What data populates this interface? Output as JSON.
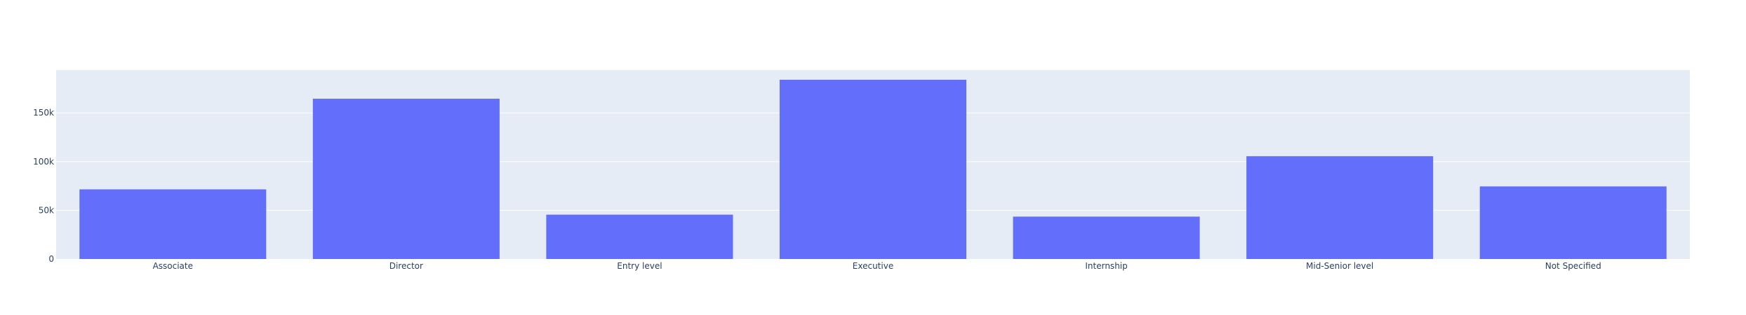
{
  "chart_data": {
    "type": "bar",
    "categories": [
      "Associate",
      "Director",
      "Entry level",
      "Executive",
      "Internship",
      "Mid-Senior level",
      "Not Specified"
    ],
    "values": [
      71500,
      164500,
      45500,
      184000,
      43500,
      105500,
      74500
    ],
    "title": "",
    "xlabel": "",
    "ylabel": "",
    "ylim": [
      0,
      194000
    ],
    "yticks": [
      0,
      50000,
      100000,
      150000
    ],
    "ytick_labels": [
      "0",
      "50k",
      "100k",
      "150k"
    ],
    "grid": true,
    "legend": "none",
    "colors": {
      "bar": "#636efa",
      "plot_bg": "#e5ecf6",
      "grid": "#ffffff",
      "text": "#2a3f5f"
    }
  }
}
